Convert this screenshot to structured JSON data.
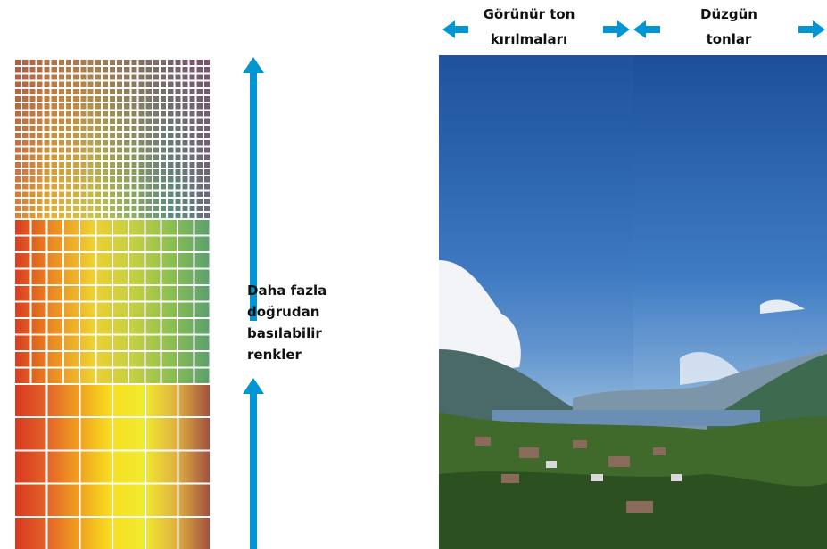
{
  "top_labels": {
    "banding": [
      "Görünür ton",
      "kırılmaları"
    ],
    "smooth": [
      "Düzgün",
      "tonlar"
    ]
  },
  "side_label": [
    "Daha fazla",
    "doğrudan",
    "basılabilir",
    "renkler"
  ]
}
